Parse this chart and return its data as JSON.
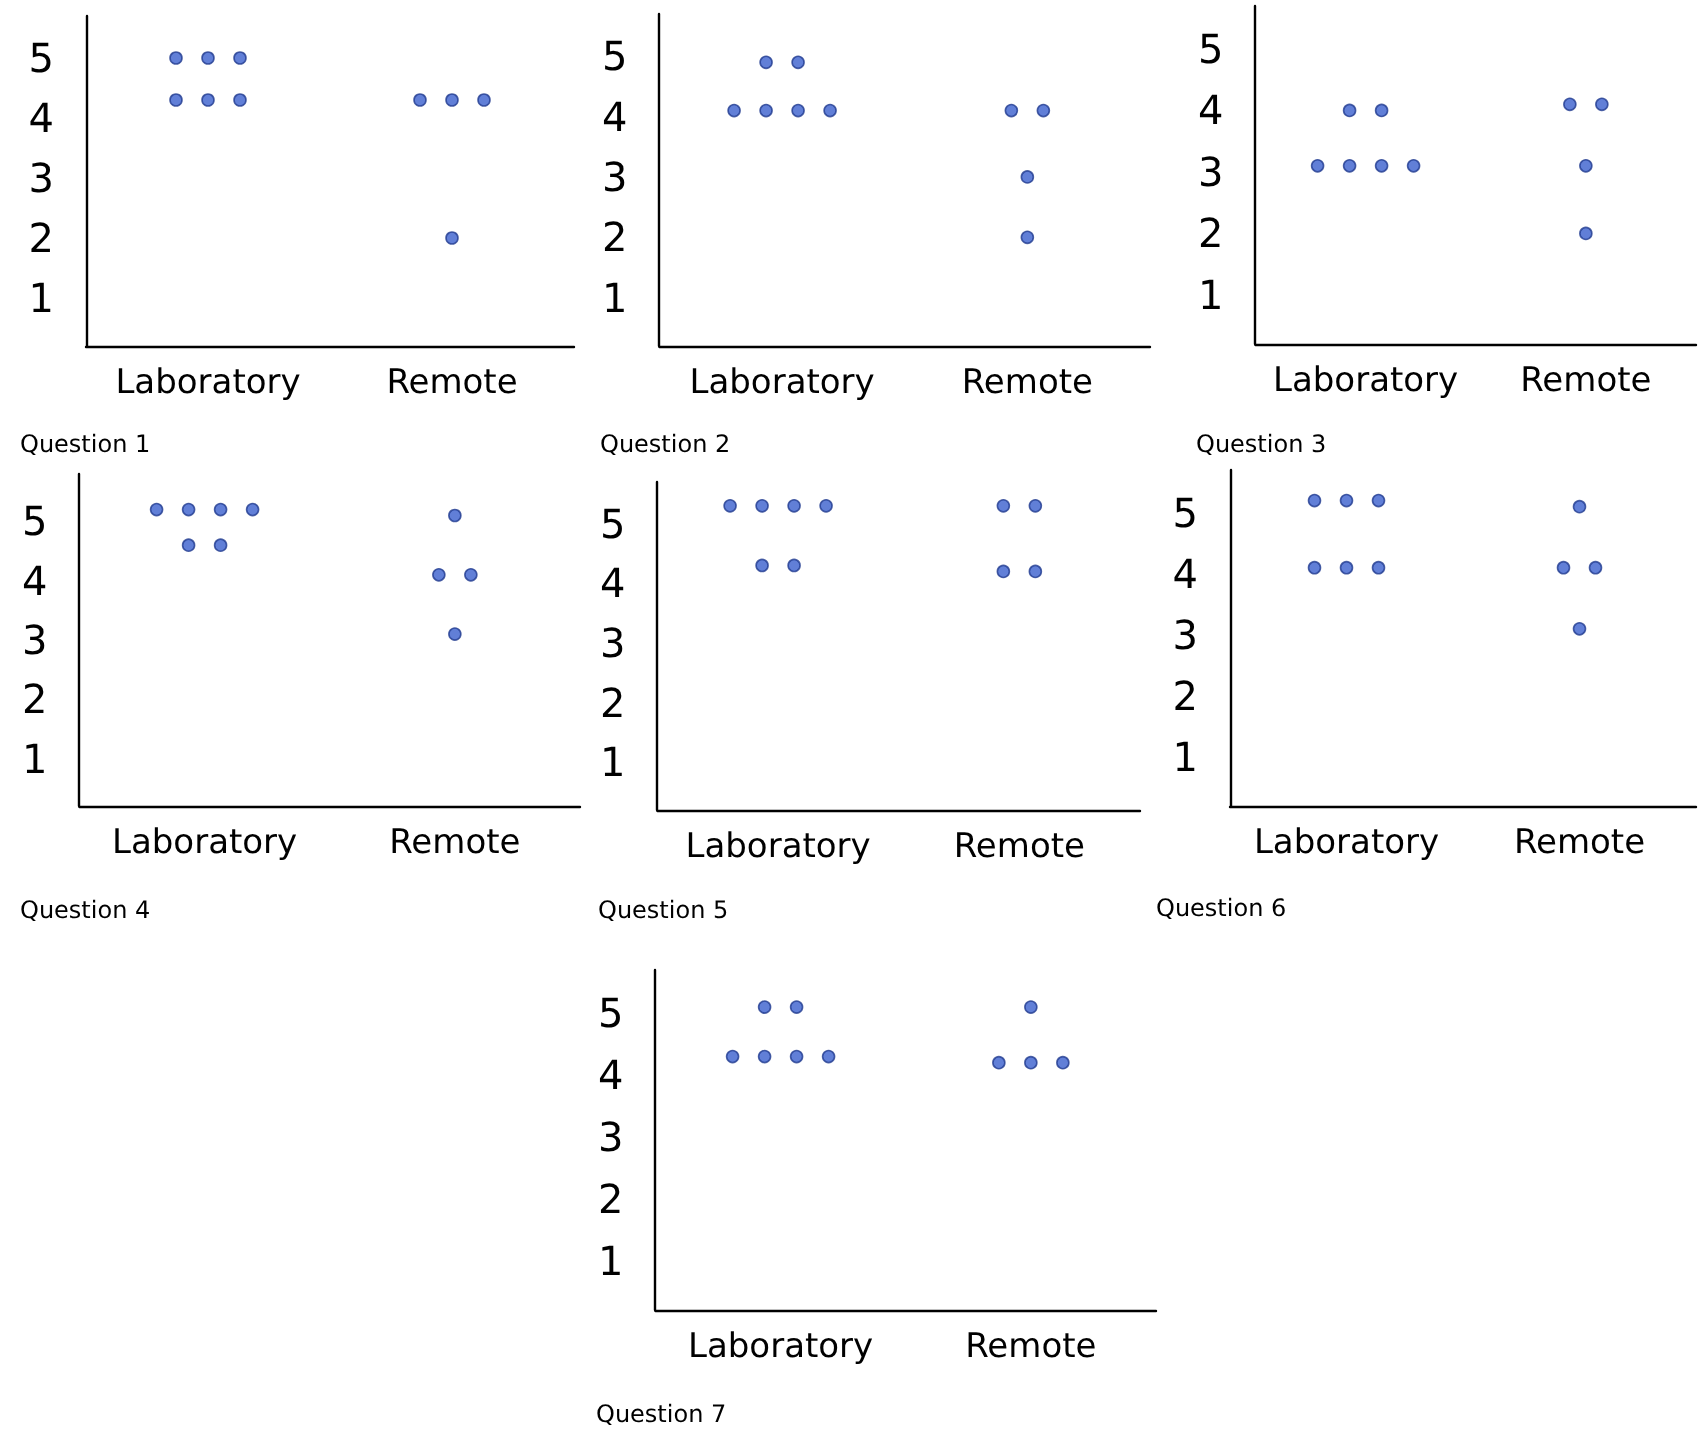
{
  "chart_data": [
    {
      "type": "scatter",
      "categories": [
        "Laboratory",
        "Remote"
      ],
      "ylim": [
        0.2,
        5.7
      ],
      "yticks": [
        1,
        2,
        3,
        4,
        5
      ],
      "annotations": [
        "Question 1"
      ],
      "series": [
        {
          "color": "#3a5fcd",
          "x": [
            "Laboratory",
            "Laboratory",
            "Laboratory",
            "Laboratory",
            "Laboratory",
            "Laboratory",
            "Remote",
            "Remote",
            "Remote",
            "Remote"
          ],
          "values": [
            5.0,
            5.0,
            5.0,
            4.3,
            4.3,
            4.3,
            4.3,
            4.3,
            4.3,
            2.0
          ]
        }
      ]
    },
    {
      "type": "scatter",
      "categories": [
        "Laboratory",
        "Remote"
      ],
      "ylim": [
        0.2,
        5.7
      ],
      "yticks": [
        1,
        2,
        3,
        4,
        5
      ],
      "annotations": [
        "Question 2"
      ],
      "series": [
        {
          "color": "#3a5fcd",
          "x": [
            "Laboratory",
            "Laboratory",
            "Laboratory",
            "Laboratory",
            "Laboratory",
            "Laboratory",
            "Remote",
            "Remote",
            "Remote",
            "Remote"
          ],
          "values": [
            4.9,
            4.9,
            4.1,
            4.1,
            4.1,
            4.1,
            4.1,
            4.1,
            3.0,
            2.0
          ]
        }
      ]
    },
    {
      "type": "scatter",
      "categories": [
        "Laboratory",
        "Remote"
      ],
      "ylim": [
        0.2,
        5.7
      ],
      "yticks": [
        1,
        2,
        3,
        4,
        5
      ],
      "annotations": [
        "Question 3"
      ],
      "series": [
        {
          "color": "#3a5fcd",
          "x": [
            "Laboratory",
            "Laboratory",
            "Laboratory",
            "Laboratory",
            "Laboratory",
            "Laboratory",
            "Remote",
            "Remote",
            "Remote",
            "Remote"
          ],
          "values": [
            4.0,
            4.0,
            3.1,
            3.1,
            3.1,
            3.1,
            4.1,
            4.1,
            3.1,
            2.0
          ]
        }
      ]
    },
    {
      "type": "scatter",
      "categories": [
        "Laboratory",
        "Remote"
      ],
      "ylim": [
        0.2,
        5.8
      ],
      "yticks": [
        1,
        2,
        3,
        4,
        5
      ],
      "annotations": [
        "Question 4"
      ],
      "series": [
        {
          "color": "#3a5fcd",
          "x": [
            "Laboratory",
            "Laboratory",
            "Laboratory",
            "Laboratory",
            "Laboratory",
            "Laboratory",
            "Remote",
            "Remote",
            "Remote",
            "Remote"
          ],
          "values": [
            5.2,
            5.2,
            5.2,
            5.2,
            4.6,
            4.6,
            5.1,
            4.1,
            4.1,
            3.1
          ]
        }
      ]
    },
    {
      "type": "scatter",
      "categories": [
        "Laboratory",
        "Remote"
      ],
      "ylim": [
        0.2,
        5.7
      ],
      "yticks": [
        1,
        2,
        3,
        4,
        5
      ],
      "annotations": [
        "Question 5"
      ],
      "series": [
        {
          "color": "#3a5fcd",
          "x": [
            "Laboratory",
            "Laboratory",
            "Laboratory",
            "Laboratory",
            "Laboratory",
            "Laboratory",
            "Remote",
            "Remote",
            "Remote",
            "Remote"
          ],
          "values": [
            5.3,
            5.3,
            5.3,
            5.3,
            4.3,
            4.3,
            5.3,
            5.3,
            4.2,
            4.2
          ]
        }
      ]
    },
    {
      "type": "scatter",
      "categories": [
        "Laboratory",
        "Remote"
      ],
      "ylim": [
        0.2,
        5.7
      ],
      "yticks": [
        1,
        2,
        3,
        4,
        5
      ],
      "annotations": [
        "Question 6"
      ],
      "series": [
        {
          "color": "#3a5fcd",
          "x": [
            "Laboratory",
            "Laboratory",
            "Laboratory",
            "Laboratory",
            "Laboratory",
            "Laboratory",
            "Remote",
            "Remote",
            "Remote",
            "Remote"
          ],
          "values": [
            5.2,
            5.2,
            5.2,
            4.1,
            4.1,
            4.1,
            5.1,
            4.1,
            4.1,
            3.1
          ]
        }
      ]
    },
    {
      "type": "scatter",
      "categories": [
        "Laboratory",
        "Remote"
      ],
      "ylim": [
        0.2,
        5.7
      ],
      "yticks": [
        1,
        2,
        3,
        4,
        5
      ],
      "annotations": [
        "Question 7"
      ],
      "series": [
        {
          "color": "#3a5fcd",
          "x": [
            "Laboratory",
            "Laboratory",
            "Laboratory",
            "Laboratory",
            "Laboratory",
            "Laboratory",
            "Remote",
            "Remote",
            "Remote",
            "Remote"
          ],
          "values": [
            5.1,
            5.1,
            4.3,
            4.3,
            4.3,
            4.3,
            5.1,
            4.2,
            4.2,
            4.2
          ]
        }
      ]
    }
  ]
}
